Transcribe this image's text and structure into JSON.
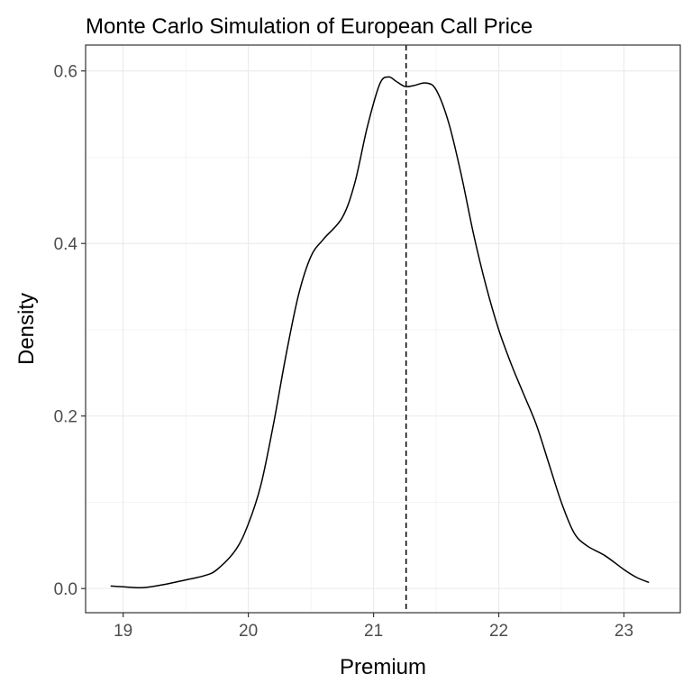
{
  "chart_data": {
    "type": "line",
    "title": "Monte Carlo Simulation of European Call Price",
    "xlabel": "Premium",
    "ylabel": "Density",
    "xlim": [
      18.7,
      23.45
    ],
    "ylim": [
      -0.028,
      0.63
    ],
    "xticks": [
      19,
      20,
      21,
      22,
      23
    ],
    "xtick_labels": [
      "19",
      "20",
      "21",
      "22",
      "23"
    ],
    "yticks": [
      0.0,
      0.2,
      0.4,
      0.6
    ],
    "ytick_labels": [
      "0.0",
      "0.2",
      "0.4",
      "0.6"
    ],
    "grid": true,
    "series": [
      {
        "name": "density",
        "x": [
          18.9,
          19.0,
          19.15,
          19.3,
          19.5,
          19.65,
          19.75,
          19.9,
          20.0,
          20.1,
          20.2,
          20.3,
          20.4,
          20.5,
          20.6,
          20.75,
          20.85,
          20.95,
          21.05,
          21.12,
          21.18,
          21.25,
          21.32,
          21.42,
          21.5,
          21.6,
          21.7,
          21.8,
          21.9,
          22.0,
          22.1,
          22.2,
          22.3,
          22.4,
          22.5,
          22.6,
          22.7,
          22.85,
          23.0,
          23.1,
          23.2
        ],
        "y": [
          0.003,
          0.002,
          0.001,
          0.004,
          0.01,
          0.015,
          0.022,
          0.045,
          0.075,
          0.12,
          0.19,
          0.27,
          0.34,
          0.385,
          0.405,
          0.43,
          0.47,
          0.535,
          0.585,
          0.593,
          0.588,
          0.582,
          0.583,
          0.586,
          0.578,
          0.54,
          0.48,
          0.41,
          0.35,
          0.3,
          0.26,
          0.225,
          0.19,
          0.145,
          0.1,
          0.065,
          0.05,
          0.038,
          0.022,
          0.013,
          0.007
        ]
      }
    ],
    "annotations": [
      {
        "type": "vline",
        "x": 21.26,
        "style": "dashed"
      }
    ]
  }
}
